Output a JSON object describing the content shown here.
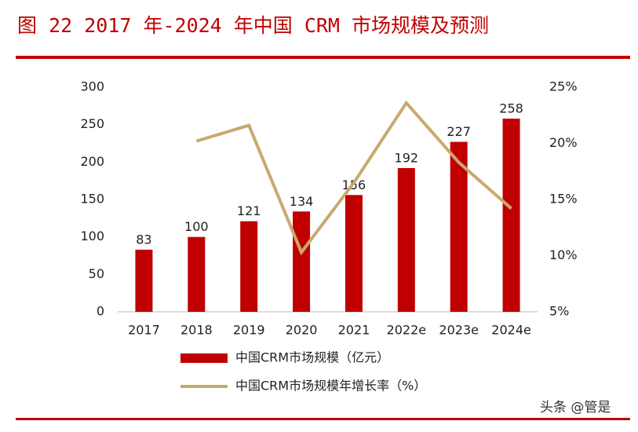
{
  "chart_data": {
    "type": "bar-line",
    "title": "图 22 2017 年-2024 年中国 CRM 市场规模及预测",
    "categories": [
      "2017",
      "2018",
      "2019",
      "2020",
      "2021",
      "2022e",
      "2023e",
      "2024e"
    ],
    "series": [
      {
        "name": "中国CRM市场规模（亿元）",
        "type": "bar",
        "color": "#c00000",
        "values": [
          83,
          100,
          121,
          134,
          156,
          192,
          227,
          258
        ]
      },
      {
        "name": "中国CRM市场规模年增长率（%）",
        "type": "line",
        "axis": "y2",
        "color": "#c9a96e",
        "values": [
          null,
          20.2,
          21.6,
          10.3,
          16.5,
          23.6,
          18.3,
          14.2
        ]
      }
    ],
    "ylim": [
      0,
      300
    ],
    "yticks": [
      0,
      50,
      100,
      150,
      200,
      250,
      300
    ],
    "y2lim": [
      5,
      25
    ],
    "y2ticks": [
      {
        "value": 5,
        "label": "5%"
      },
      {
        "value": 10,
        "label": "10%"
      },
      {
        "value": 15,
        "label": "15%"
      },
      {
        "value": 20,
        "label": "20%"
      },
      {
        "value": 25,
        "label": "25%"
      }
    ],
    "watermark": "头条 @管是"
  }
}
